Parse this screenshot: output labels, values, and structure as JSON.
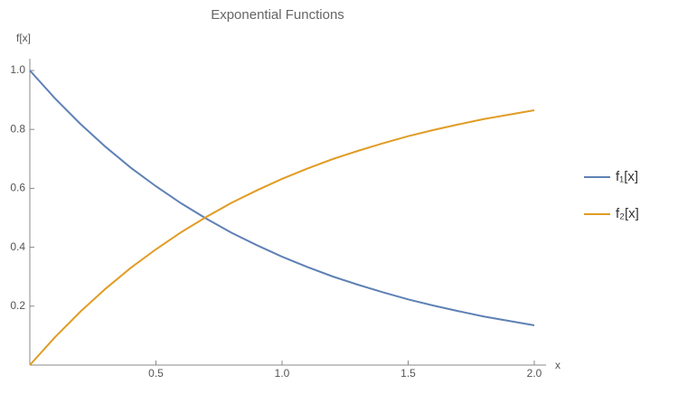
{
  "chart_data": {
    "type": "line",
    "title": "Exponential Functions",
    "x_label": "x",
    "y_label": "f[x]",
    "x": [
      0,
      0.1,
      0.2,
      0.3,
      0.4,
      0.5,
      0.6,
      0.7,
      0.8,
      0.9,
      1.0,
      1.1,
      1.2,
      1.3,
      1.4,
      1.5,
      1.6,
      1.7,
      1.8,
      1.9,
      2.0
    ],
    "series": [
      {
        "name": "f₁[x]",
        "color": "#5e81b5",
        "values": [
          1,
          0.905,
          0.819,
          0.741,
          0.67,
          0.607,
          0.549,
          0.497,
          0.449,
          0.407,
          0.368,
          0.333,
          0.301,
          0.273,
          0.247,
          0.223,
          0.202,
          0.183,
          0.165,
          0.15,
          0.135
        ]
      },
      {
        "name": "f₂[x]",
        "color": "#e19c24",
        "values": [
          0,
          0.095,
          0.181,
          0.259,
          0.33,
          0.393,
          0.451,
          0.503,
          0.551,
          0.593,
          0.632,
          0.667,
          0.699,
          0.727,
          0.753,
          0.777,
          0.798,
          0.817,
          0.835,
          0.85,
          0.865
        ]
      }
    ],
    "xlim": [
      0,
      2.05
    ],
    "ylim": [
      0,
      1.04
    ],
    "xticks": [
      0.5,
      {
        "value": 1,
        "label": "1.0"
      },
      1.5,
      {
        "value": 2,
        "label": "2.0"
      }
    ],
    "yticks": [
      0.2,
      0.4,
      0.6,
      0.8,
      {
        "value": 1,
        "label": "1.0"
      }
    ],
    "legend": "right"
  }
}
